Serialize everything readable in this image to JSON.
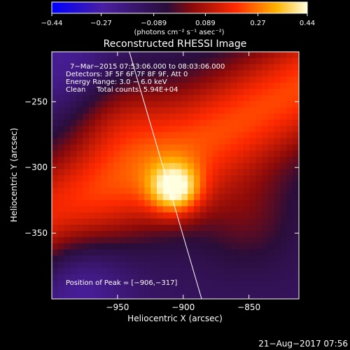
{
  "chart_data": {
    "type": "heatmap",
    "title": "Reconstructed RHESSI Image",
    "xlabel": "Heliocentric X (arcsec)",
    "ylabel": "Heliocentric Y (arcsec)",
    "x_ticks": [
      -950,
      -900,
      -850
    ],
    "x_tick_labels": [
      "−950",
      "−900",
      "−850"
    ],
    "y_ticks": [
      -250,
      -300,
      -350
    ],
    "y_tick_labels": [
      "−250",
      "−300",
      "−350"
    ],
    "xlim": [
      -1000,
      -812
    ],
    "ylim": [
      -400,
      -212
    ],
    "grid": false,
    "colorbar": {
      "ticks": [
        -0.44,
        -0.27,
        -0.089,
        0.089,
        0.27,
        0.44
      ],
      "tick_labels": [
        "−0.44",
        "−0.27",
        "−0.089",
        "0.089",
        "0.27",
        "0.44"
      ],
      "range": [
        -0.44,
        0.44
      ],
      "colors": [
        "#0000ff",
        "#4a1fa0",
        "#2a0d3a",
        "#8a0a0a",
        "#ff2a00",
        "#ffb400",
        "#ffffe0"
      ]
    },
    "annotations": [
      "7−Mar−2015 07:53:06.000 to 08:03:06.000",
      "Detectors: 3F 5F 6F 7F 8F 9F, Att 0",
      "Energy Range: 3.0 − 6.0 keV",
      "Clean     Total counts: 5.94E+04"
    ],
    "peak_label": "Position of Peak = [−906,−317]",
    "peak": {
      "x": -906,
      "y": -317,
      "value": 0.44
    },
    "features": [
      {
        "name": "main-ridge",
        "from": [
          -1000,
          -340
        ],
        "to": [
          -812,
          -240
        ],
        "level": 0.12
      },
      {
        "name": "secondary-lobe",
        "x": -955,
        "y": -255,
        "level": 0.1
      },
      {
        "name": "lower-right-arm",
        "x": -850,
        "y": -340,
        "level": 0.06
      },
      {
        "name": "upper-left-background",
        "x": -985,
        "y": -225,
        "level": -0.2
      },
      {
        "name": "lower-left-background",
        "x": -985,
        "y": -385,
        "level": -0.25
      }
    ],
    "limb_line": {
      "x_top": -941,
      "x_bottom": -886
    }
  },
  "colorbar_units": "(photons cm⁻² s⁻¹ asec⁻²)",
  "timestamp": "21−Aug−2017 07:56"
}
